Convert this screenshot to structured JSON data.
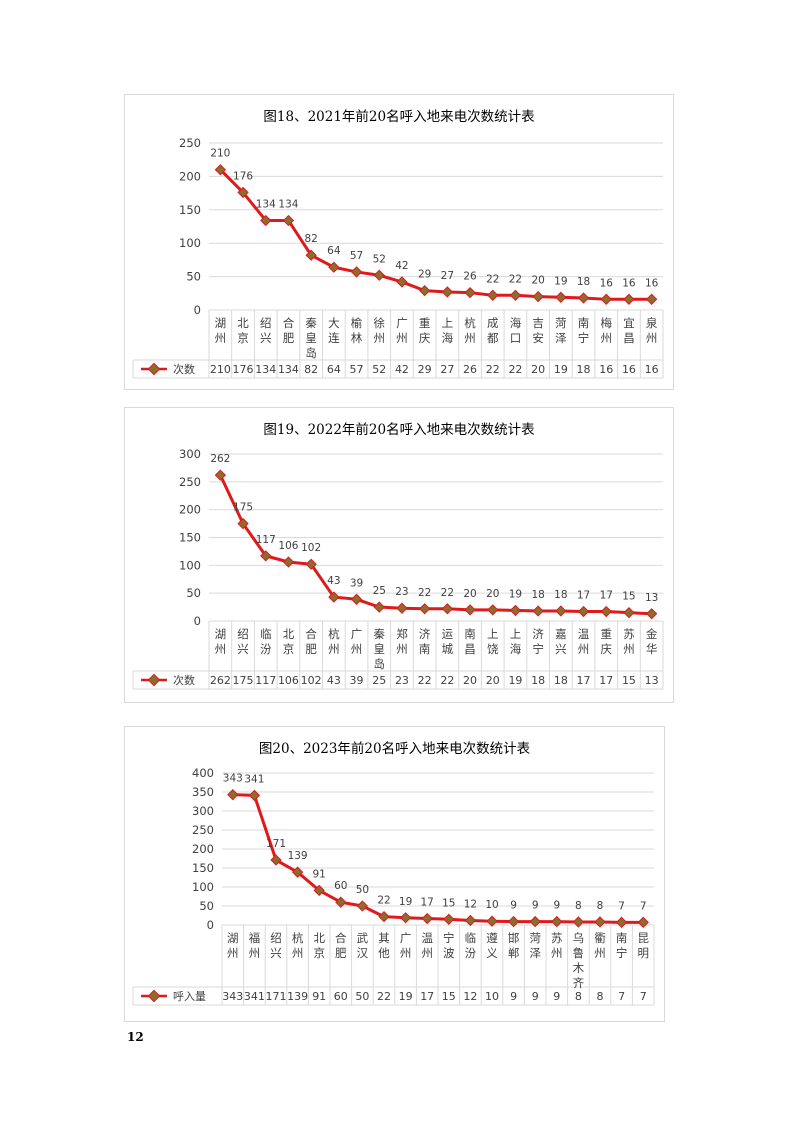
{
  "page_number": "12",
  "colors": {
    "line": "#e0191c",
    "marker": "#8a6d2f",
    "grid": "#d9d9d9",
    "text": "#404040"
  },
  "chart_data": [
    {
      "type": "line",
      "title": "图18、2021年前20名呼入地来电次数统计表",
      "series_name": "次数",
      "ylim": [
        0,
        250
      ],
      "yticks": [
        0,
        50,
        100,
        150,
        200,
        250
      ],
      "grid": true,
      "categories": [
        [
          "湖",
          "州"
        ],
        [
          "北",
          "京"
        ],
        [
          "绍",
          "兴"
        ],
        [
          "合",
          "肥"
        ],
        [
          "秦",
          "皇",
          "岛"
        ],
        [
          "大",
          "连"
        ],
        [
          "榆",
          "林"
        ],
        [
          "徐",
          "州"
        ],
        [
          "广",
          "州"
        ],
        [
          "重",
          "庆"
        ],
        [
          "上",
          "海"
        ],
        [
          "杭",
          "州"
        ],
        [
          "成",
          "都"
        ],
        [
          "海",
          "口"
        ],
        [
          "吉",
          "安"
        ],
        [
          "菏",
          "泽"
        ],
        [
          "南",
          "宁"
        ],
        [
          "梅",
          "州"
        ],
        [
          "宜",
          "昌"
        ],
        [
          "泉",
          "州"
        ]
      ],
      "values": [
        210,
        176,
        134,
        134,
        82,
        64,
        57,
        52,
        42,
        29,
        27,
        26,
        22,
        22,
        20,
        19,
        18,
        16,
        16,
        16
      ]
    },
    {
      "type": "line",
      "title": "图19、2022年前20名呼入地来电次数统计表",
      "series_name": "次数",
      "ylim": [
        0,
        300
      ],
      "yticks": [
        0,
        50,
        100,
        150,
        200,
        250,
        300
      ],
      "grid": true,
      "categories": [
        [
          "湖",
          "州"
        ],
        [
          "绍",
          "兴"
        ],
        [
          "临",
          "汾"
        ],
        [
          "北",
          "京"
        ],
        [
          "合",
          "肥"
        ],
        [
          "杭",
          "州"
        ],
        [
          "广",
          "州"
        ],
        [
          "秦",
          "皇",
          "岛"
        ],
        [
          "郑",
          "州"
        ],
        [
          "济",
          "南"
        ],
        [
          "运",
          "城"
        ],
        [
          "南",
          "昌"
        ],
        [
          "上",
          "饶"
        ],
        [
          "上",
          "海"
        ],
        [
          "济",
          "宁"
        ],
        [
          "嘉",
          "兴"
        ],
        [
          "温",
          "州"
        ],
        [
          "重",
          "庆"
        ],
        [
          "苏",
          "州"
        ],
        [
          "金",
          "华"
        ]
      ],
      "values": [
        262,
        175,
        117,
        106,
        102,
        43,
        39,
        25,
        23,
        22,
        22,
        20,
        20,
        19,
        18,
        18,
        17,
        17,
        15,
        13
      ]
    },
    {
      "type": "line",
      "title": "图20、2023年前20名呼入地来电次数统计表",
      "series_name": "呼入量",
      "ylim": [
        0,
        400
      ],
      "yticks": [
        0,
        50,
        100,
        150,
        200,
        250,
        300,
        350,
        400
      ],
      "grid": true,
      "categories": [
        [
          "湖",
          "州"
        ],
        [
          "福",
          "州"
        ],
        [
          "绍",
          "兴"
        ],
        [
          "杭",
          "州"
        ],
        [
          "北",
          "京"
        ],
        [
          "合",
          "肥"
        ],
        [
          "武",
          "汉"
        ],
        [
          "其",
          "他"
        ],
        [
          "广",
          "州"
        ],
        [
          "温",
          "州"
        ],
        [
          "宁",
          "波"
        ],
        [
          "临",
          "汾"
        ],
        [
          "遵",
          "义"
        ],
        [
          "邯",
          "郸"
        ],
        [
          "菏",
          "泽"
        ],
        [
          "苏",
          "州"
        ],
        [
          "乌",
          "鲁",
          "木",
          "齐"
        ],
        [
          "衢",
          "州"
        ],
        [
          "南",
          "宁"
        ],
        [
          "昆",
          "明"
        ]
      ],
      "values": [
        343,
        341,
        171,
        139,
        91,
        60,
        50,
        22,
        19,
        17,
        15,
        12,
        10,
        9,
        9,
        9,
        8,
        8,
        7,
        7
      ]
    }
  ]
}
